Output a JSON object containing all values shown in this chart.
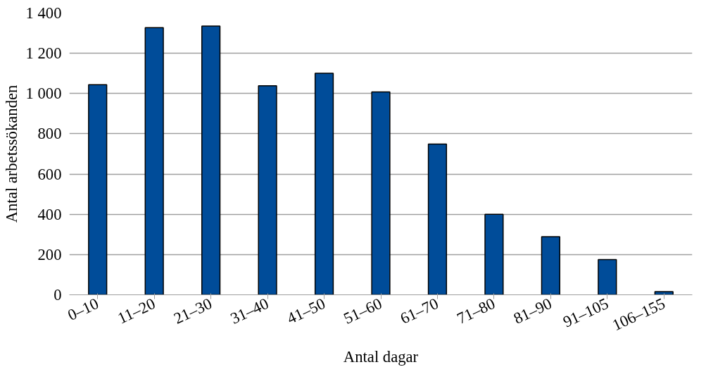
{
  "chart_data": {
    "type": "bar",
    "xlabel": "Antal dagar",
    "ylabel": "Antal arbetssökanden",
    "categories": [
      "0–10",
      "11–20",
      "21–30",
      "31–40",
      "41–50",
      "51–60",
      "61–70",
      "71–80",
      "81–90",
      "91–105",
      "106–155"
    ],
    "values": [
      1044,
      1327,
      1335,
      1039,
      1101,
      1008,
      749,
      400,
      289,
      175,
      16
    ],
    "color": "#004c99",
    "ylim": [
      0,
      1400
    ],
    "yticks": [
      0,
      {
        "value": 200,
        "label": "200"
      },
      {
        "value": 400,
        "label": "400"
      },
      {
        "value": 600,
        "label": "600"
      },
      {
        "value": 800,
        "label": "800"
      },
      {
        "value": 1000,
        "label": "1 000"
      },
      {
        "value": 1200,
        "label": "1 200"
      },
      {
        "value": 1400,
        "label": "1 400"
      }
    ],
    "grid": "y"
  }
}
